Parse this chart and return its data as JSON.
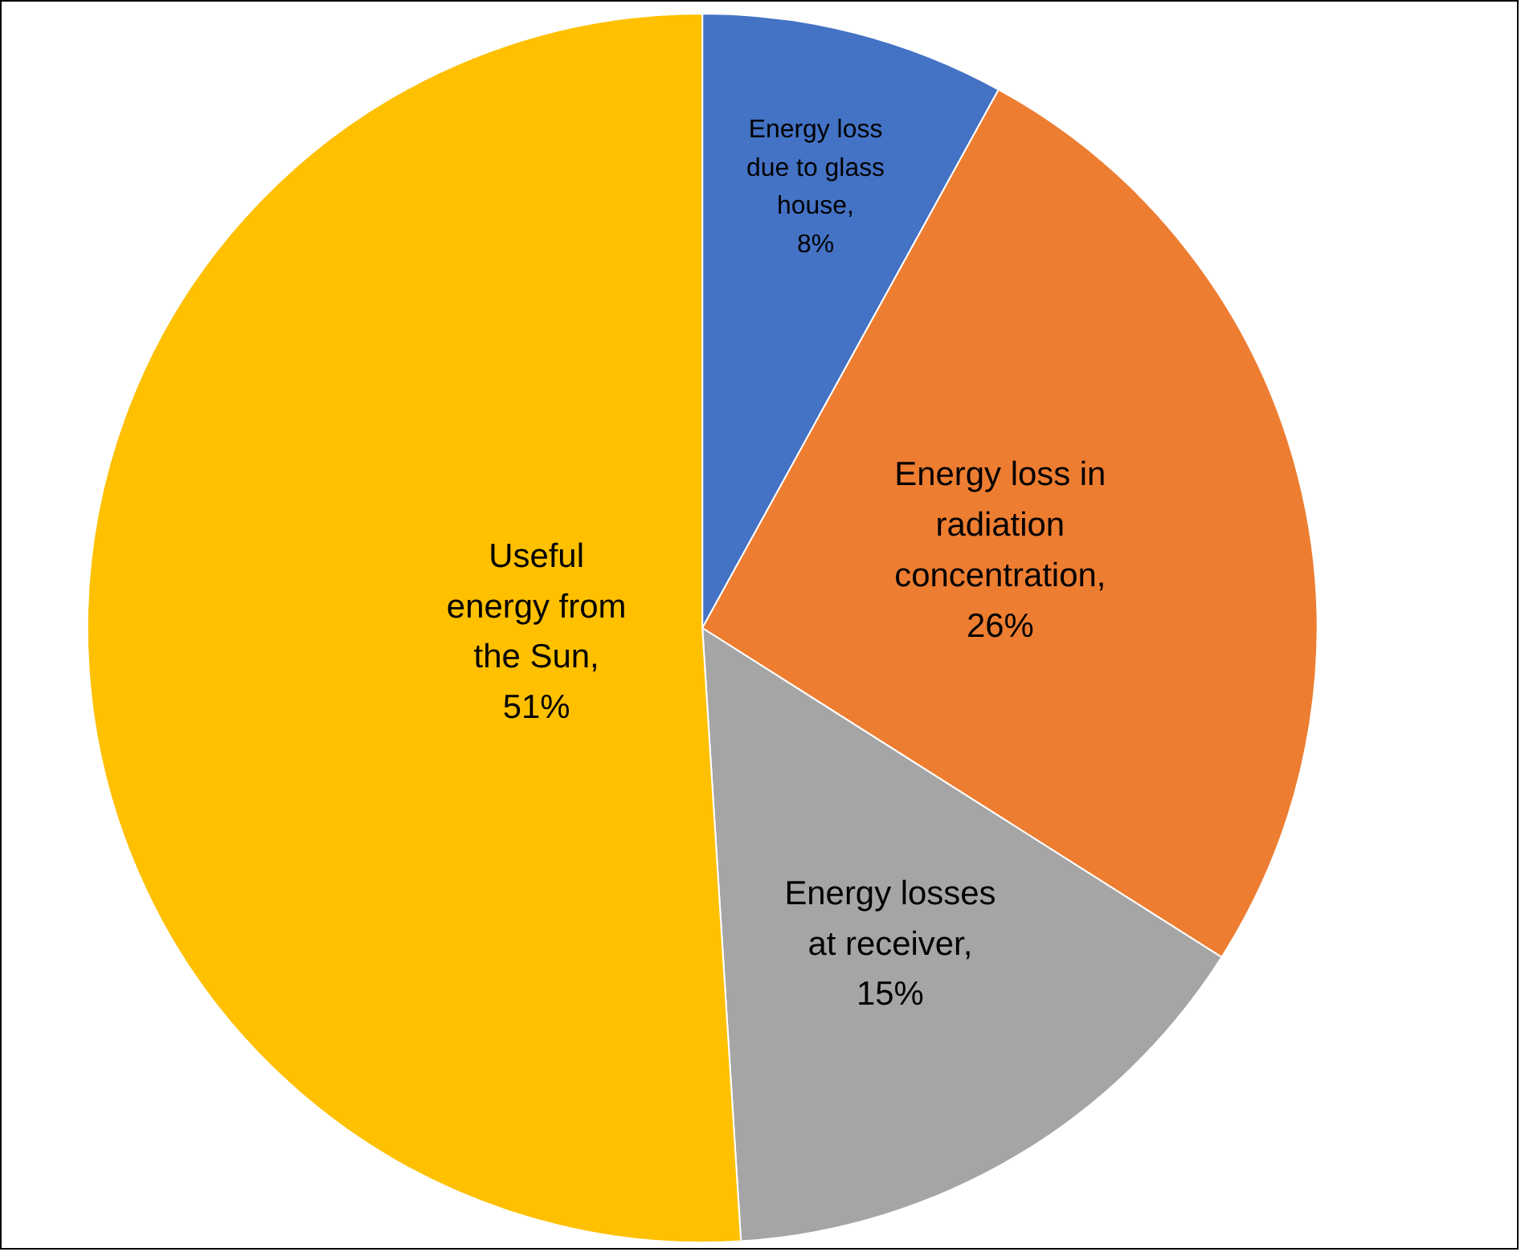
{
  "chart_data": {
    "type": "pie",
    "categories": [
      "Energy loss due to glass house",
      "Energy loss in radiation concentration",
      "Energy losses at receiver",
      "Useful energy from the Sun"
    ],
    "values": [
      8,
      26,
      15,
      51
    ],
    "colors": [
      "#4472c4",
      "#ed7d31",
      "#a5a5a5",
      "#ffc000"
    ],
    "value_labels": [
      ", 8%",
      ", 26%",
      ", 15%",
      ", 51%"
    ],
    "legend": false
  }
}
